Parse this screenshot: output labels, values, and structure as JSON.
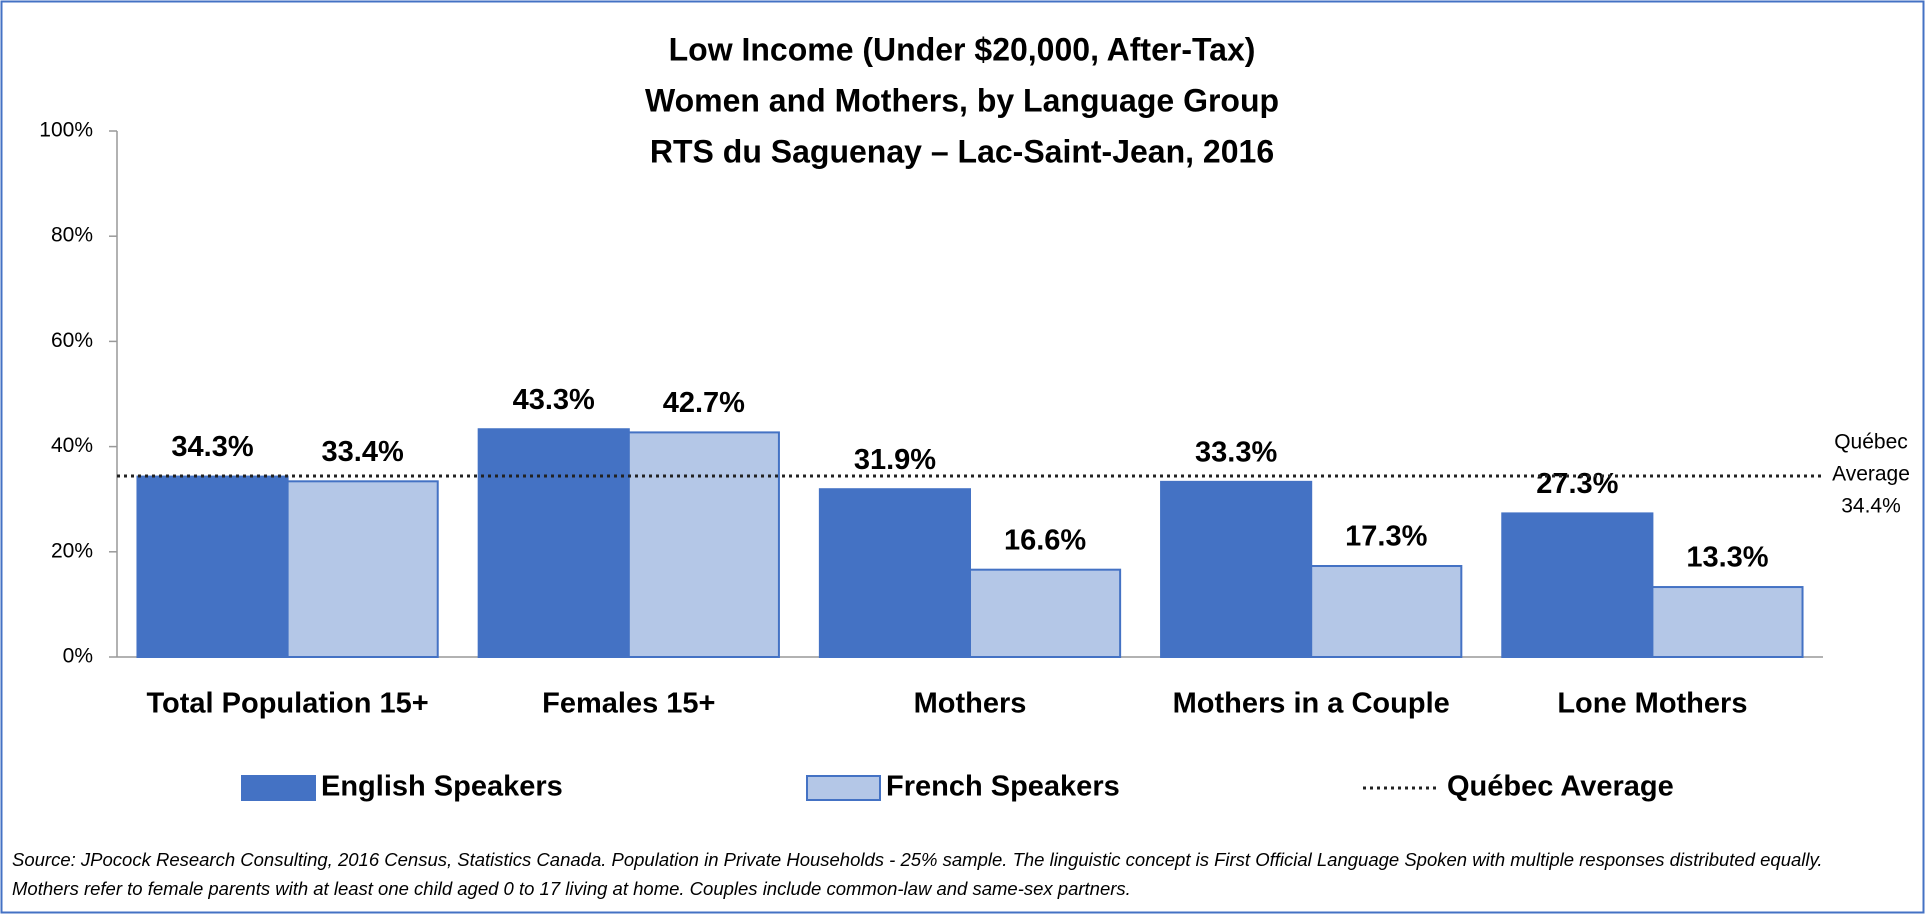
{
  "chart_data": {
    "type": "bar",
    "title": [
      "Low Income (Under $20,000, After-Tax)",
      "Women and Mothers, by Language Group",
      "RTS du Saguenay – Lac-Saint-Jean, 2016"
    ],
    "categories": [
      "Total Population 15+",
      "Females 15+",
      "Mothers",
      "Mothers in a Couple",
      "Lone Mothers"
    ],
    "series": [
      {
        "name": "English Speakers",
        "color": "#4472c4",
        "values": [
          34.3,
          43.3,
          31.9,
          33.3,
          27.3
        ],
        "value_labels": [
          "34.3%",
          "43.3%",
          "31.9%",
          "33.3%",
          "27.3%"
        ]
      },
      {
        "name": "French Speakers",
        "color": "#b4c7e7",
        "values": [
          33.4,
          42.7,
          16.6,
          17.3,
          13.3
        ],
        "value_labels": [
          "33.4%",
          "42.7%",
          "16.6%",
          "17.3%",
          "13.3%"
        ]
      }
    ],
    "reference": {
      "name": "Québec Average",
      "value": 34.4,
      "annotation": [
        "Québec",
        "Average",
        "34.4%"
      ]
    },
    "ylim": [
      0,
      100
    ],
    "yticks": [
      {
        "value": 0,
        "label": "0%"
      },
      {
        "value": 20,
        "label": "20%"
      },
      {
        "value": 40,
        "label": "40%"
      },
      {
        "value": 60,
        "label": "60%"
      },
      {
        "value": 80,
        "label": "80%"
      },
      {
        "value": 100,
        "label": "100%"
      }
    ],
    "grid": false,
    "legend": "bottom",
    "source": "Source: JPocock Research Consulting, 2016 Census, Statistics Canada. Population in Private Households - 25% sample. The linguistic concept is First Official Language Spoken with multiple responses distributed equally. Mothers refer to female parents with at least one child aged 0 to 17 living at home. Couples include common-law and same-sex partners."
  }
}
